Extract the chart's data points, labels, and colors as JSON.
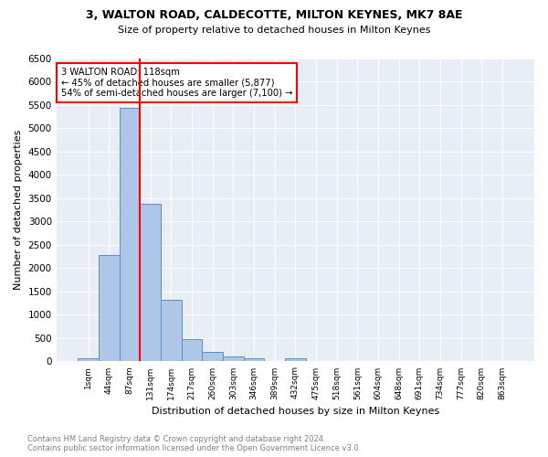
{
  "title1": "3, WALTON ROAD, CALDECOTTE, MILTON KEYNES, MK7 8AE",
  "title2": "Size of property relative to detached houses in Milton Keynes",
  "xlabel": "Distribution of detached houses by size in Milton Keynes",
  "ylabel": "Number of detached properties",
  "footer1": "Contains HM Land Registry data © Crown copyright and database right 2024.",
  "footer2": "Contains public sector information licensed under the Open Government Licence v3.0.",
  "bin_labels": [
    "1sqm",
    "44sqm",
    "87sqm",
    "131sqm",
    "174sqm",
    "217sqm",
    "260sqm",
    "303sqm",
    "346sqm",
    "389sqm",
    "432sqm",
    "475sqm",
    "518sqm",
    "561sqm",
    "604sqm",
    "648sqm",
    "691sqm",
    "734sqm",
    "777sqm",
    "820sqm",
    "863sqm"
  ],
  "bar_values": [
    70,
    2280,
    5450,
    3380,
    1320,
    470,
    200,
    100,
    65,
    0,
    60,
    0,
    0,
    0,
    0,
    0,
    0,
    0,
    0,
    0,
    0
  ],
  "bar_color": "#aec6e8",
  "bar_edge_color": "#5a8fc2",
  "vline_color": "red",
  "annotation_line1": "3 WALTON ROAD: 118sqm",
  "annotation_line2": "← 45% of detached houses are smaller (5,877)",
  "annotation_line3": "54% of semi-detached houses are larger (7,100) →",
  "annotation_box_color": "white",
  "annotation_box_edge_color": "red",
  "ylim": [
    0,
    6500
  ],
  "yticks": [
    0,
    500,
    1000,
    1500,
    2000,
    2500,
    3000,
    3500,
    4000,
    4500,
    5000,
    5500,
    6000,
    6500
  ],
  "plot_bg_color": "#e8eef5"
}
